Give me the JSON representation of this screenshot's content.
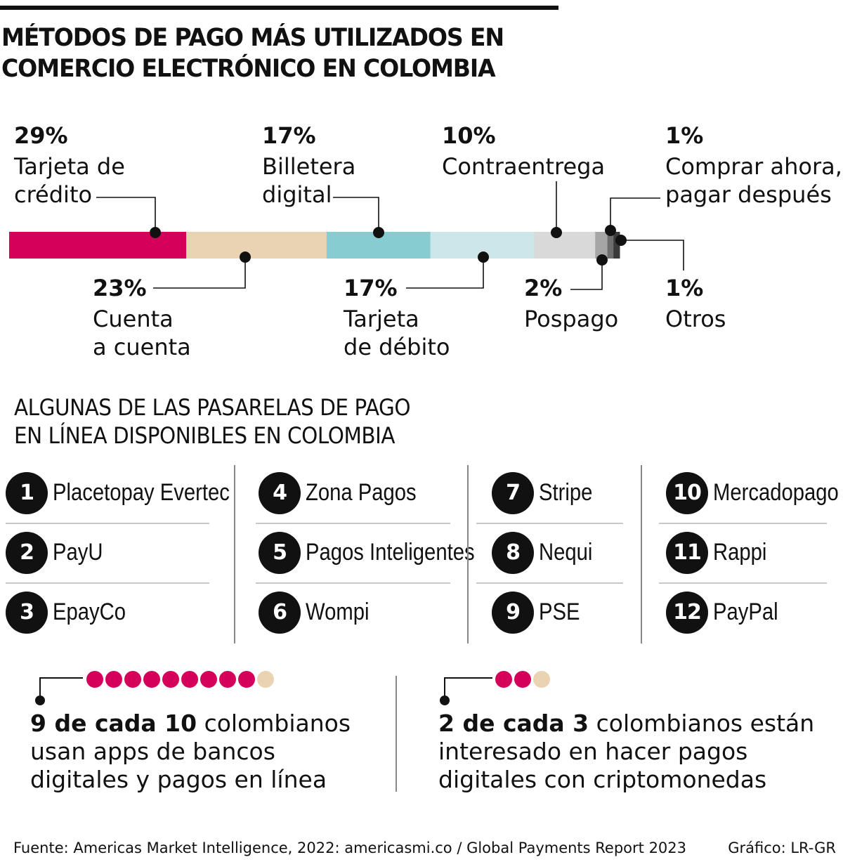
{
  "title": {
    "line1": "MÉTODOS DE PAGO MÁS UTILIZADOS EN",
    "line2": "COMERCIO ELECTRÓNICO EN COLOMBIA"
  },
  "chart_data": {
    "type": "stacked-bar",
    "title": "MÉTODOS DE PAGO MÁS UTILIZADOS EN COMERCIO ELECTRÓNICO EN COLOMBIA",
    "unit": "%",
    "segments": [
      {
        "label": "Tarjeta de crédito",
        "line1": "Tarjeta de",
        "line2": "crédito",
        "value": 29,
        "display": "29%",
        "color": "#d4005a",
        "pos": "top"
      },
      {
        "label": "Cuenta a cuenta",
        "line1": "Cuenta",
        "line2": "a cuenta",
        "value": 23,
        "display": "23%",
        "color": "#ead3b2",
        "pos": "bottom"
      },
      {
        "label": "Billetera digital",
        "line1": "Billetera",
        "line2": "digital",
        "value": 17,
        "display": "17%",
        "color": "#86ccd1",
        "pos": "top"
      },
      {
        "label": "Tarjeta de débito",
        "line1": "Tarjeta",
        "line2": "de débito",
        "value": 17,
        "display": "17%",
        "color": "#cce6e9",
        "pos": "bottom"
      },
      {
        "label": "Contraentrega",
        "line1": "Contraentrega",
        "line2": "",
        "value": 10,
        "display": "10%",
        "color": "#d9d9d9",
        "pos": "top"
      },
      {
        "label": "Pospago",
        "line1": "Pospago",
        "line2": "",
        "value": 2,
        "display": "2%",
        "color": "#a6a6a6",
        "pos": "bottom"
      },
      {
        "label": "Comprar ahora, pagar después",
        "line1": "Comprar ahora,",
        "line2": "pagar después",
        "value": 1,
        "display": "1%",
        "color": "#6e6e6e",
        "pos": "top"
      },
      {
        "label": "Otros",
        "line1": "Otros",
        "line2": "",
        "value": 1,
        "display": "1%",
        "color": "#3a3a3a",
        "pos": "bottom"
      }
    ]
  },
  "gateways": {
    "title_line1": "ALGUNAS DE LAS PASARELAS DE PAGO",
    "title_line2": "EN LÍNEA DISPONIBLES EN COLOMBIA",
    "items": [
      {
        "num": "1",
        "name": "Placetopay Evertec"
      },
      {
        "num": "2",
        "name": "PayU"
      },
      {
        "num": "3",
        "name": "EpayCo"
      },
      {
        "num": "4",
        "name": "Zona Pagos"
      },
      {
        "num": "5",
        "name": "Pagos Inteligentes"
      },
      {
        "num": "6",
        "name": "Wompi"
      },
      {
        "num": "7",
        "name": "Stripe"
      },
      {
        "num": "8",
        "name": "Nequi"
      },
      {
        "num": "9",
        "name": "PSE"
      },
      {
        "num": "10",
        "name": "Mercadopago"
      },
      {
        "num": "11",
        "name": "Rappi"
      },
      {
        "num": "12",
        "name": "PayPal"
      }
    ]
  },
  "stats": [
    {
      "bold": "9 de cada 10",
      "rest": " colombianos",
      "line2": "usan apps de bancos",
      "line3": "digitales y pagos en línea",
      "filled": 9,
      "total": 10
    },
    {
      "bold": "2 de cada 3",
      "rest": " colombianos están",
      "line2": "interesado en hacer pagos",
      "line3": "digitales con criptomonedas",
      "filled": 2,
      "total": 3
    }
  ],
  "colors": {
    "accent": "#d4005a",
    "empty": "#ead3b2",
    "ink": "#111111"
  },
  "footer": {
    "source": "Fuente: Americas Market Intelligence, 2022: americasmi.co / Global Payments Report 2023",
    "credit": "Gráfico: LR-GR"
  }
}
